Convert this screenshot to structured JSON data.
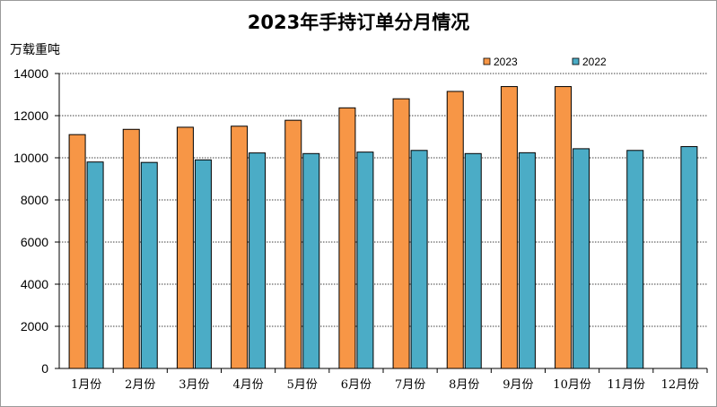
{
  "chart_data": {
    "type": "bar",
    "title": "2023年手持订单分月情况",
    "ylabel": "万载重吨",
    "xlabel": "",
    "ylim": [
      0,
      14000
    ],
    "yticks": [
      0,
      2000,
      4000,
      6000,
      8000,
      10000,
      12000,
      14000
    ],
    "grid": true,
    "legend": "top-right",
    "categories": [
      "1月份",
      "2月份",
      "3月份",
      "4月份",
      "5月份",
      "6月份",
      "7月份",
      "8月份",
      "9月份",
      "10月份",
      "11月份",
      "12月份"
    ],
    "series": [
      {
        "name": "2023",
        "color": "#f79646",
        "values": [
          11100,
          11350,
          11450,
          11500,
          11780,
          12370,
          12800,
          13150,
          13380,
          13380,
          null,
          null
        ]
      },
      {
        "name": "2022",
        "color": "#4bacc6",
        "values": [
          9800,
          9780,
          9900,
          10230,
          10200,
          10270,
          10350,
          10200,
          10240,
          10430,
          10350,
          10530
        ]
      }
    ]
  }
}
